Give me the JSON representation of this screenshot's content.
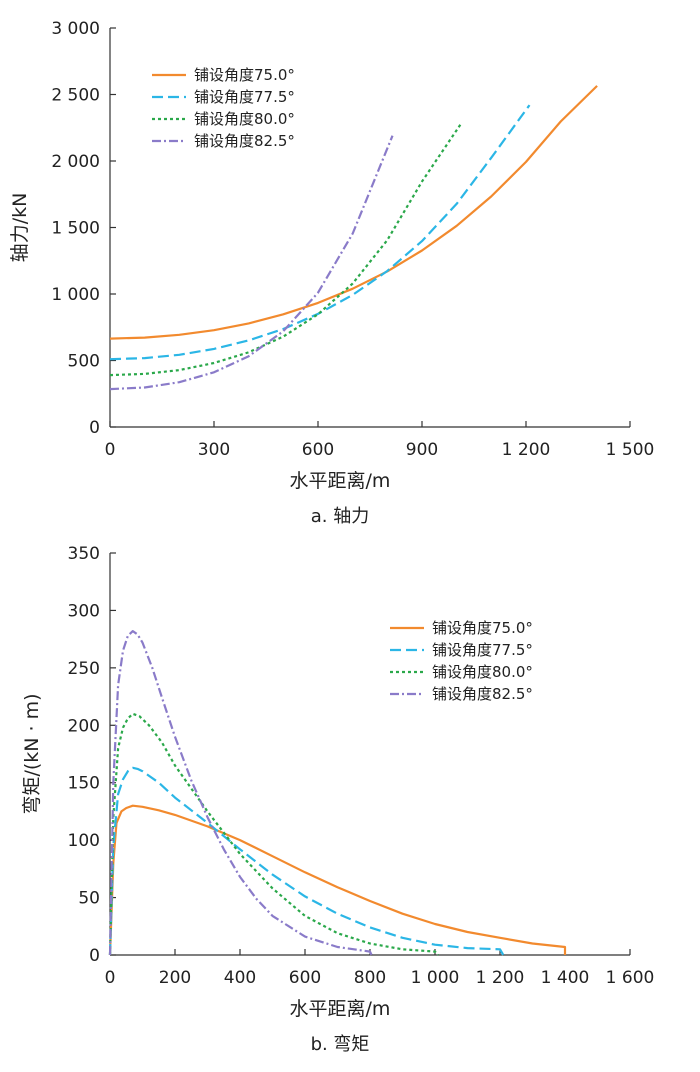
{
  "chart_data": [
    {
      "type": "line",
      "caption": "a. 轴力",
      "xlabel": "水平距离/m",
      "ylabel": "轴力/kN",
      "xlim": [
        0,
        1500
      ],
      "ylim": [
        0,
        3000
      ],
      "xticks": [
        0,
        300,
        600,
        900,
        1200,
        1500
      ],
      "xtick_labels": [
        "0",
        "300",
        "600",
        "900",
        "1 200",
        "1 500"
      ],
      "yticks": [
        0,
        500,
        1000,
        1500,
        2000,
        2500,
        3000
      ],
      "ytick_labels": [
        "0",
        "500",
        "1 000",
        "1 500",
        "2 000",
        "2 500",
        "3 000"
      ],
      "grid": false,
      "legend": "top-left",
      "series": [
        {
          "name": "铺设角度75.0°",
          "color": "#f28a2e",
          "dash": "solid",
          "x": [
            0,
            100,
            200,
            300,
            400,
            500,
            600,
            700,
            800,
            900,
            1000,
            1100,
            1200,
            1300,
            1405
          ],
          "y": [
            665,
            672,
            693,
            728,
            779,
            847,
            933,
            1040,
            1170,
            1327,
            1513,
            1734,
            1993,
            2297,
            2565
          ]
        },
        {
          "name": "铺设角度77.5°",
          "color": "#2bb6e6",
          "dash": "dashed",
          "x": [
            0,
            100,
            200,
            300,
            400,
            500,
            600,
            700,
            800,
            900,
            1000,
            1100,
            1210
          ],
          "y": [
            510,
            518,
            543,
            587,
            651,
            737,
            850,
            993,
            1173,
            1398,
            1678,
            2025,
            2420
          ]
        },
        {
          "name": "铺设角度80.0°",
          "color": "#2aa84a",
          "dash": "dotted",
          "x": [
            0,
            100,
            200,
            300,
            400,
            500,
            600,
            700,
            800,
            900,
            1015
          ],
          "y": [
            390,
            399,
            428,
            481,
            562,
            680,
            847,
            1079,
            1405,
            1846,
            2290
          ]
        },
        {
          "name": "铺设角度82.5°",
          "color": "#8a7bc9",
          "dash": "dashdot",
          "x": [
            0,
            100,
            200,
            300,
            400,
            500,
            600,
            700,
            815
          ],
          "y": [
            285,
            297,
            337,
            411,
            532,
            720,
            1010,
            1455,
            2190
          ]
        }
      ]
    },
    {
      "type": "line",
      "caption": "b. 弯矩",
      "xlabel": "水平距离/m",
      "ylabel": "弯矩/(kN · m)",
      "xlim": [
        0,
        1600
      ],
      "ylim": [
        0,
        350
      ],
      "xticks": [
        0,
        200,
        400,
        600,
        800,
        1000,
        1200,
        1400,
        1600
      ],
      "xtick_labels": [
        "0",
        "200",
        "400",
        "600",
        "800",
        "1 000",
        "1 200",
        "1 400",
        "1 600"
      ],
      "yticks": [
        0,
        50,
        100,
        150,
        200,
        250,
        300,
        350
      ],
      "ytick_labels": [
        "0",
        "50",
        "100",
        "150",
        "200",
        "250",
        "300",
        "350"
      ],
      "grid": false,
      "legend": "upper-right",
      "series": [
        {
          "name": "铺设角度75.0°",
          "color": "#f28a2e",
          "dash": "solid",
          "x": [
            0,
            10,
            20,
            35,
            50,
            70,
            100,
            150,
            200,
            300,
            400,
            500,
            600,
            700,
            800,
            900,
            1000,
            1100,
            1200,
            1300,
            1400,
            1400
          ],
          "y": [
            0,
            80,
            115,
            125,
            128,
            130,
            129,
            126,
            122,
            112,
            100,
            86,
            72,
            59,
            47,
            36,
            27,
            20,
            15,
            10,
            7,
            0
          ]
        },
        {
          "name": "铺设角度77.5°",
          "color": "#2bb6e6",
          "dash": "dashed",
          "x": [
            0,
            10,
            25,
            40,
            55,
            70,
            85,
            100,
            150,
            200,
            300,
            400,
            500,
            600,
            700,
            800,
            900,
            1000,
            1100,
            1200,
            1210
          ],
          "y": [
            0,
            95,
            140,
            153,
            160,
            163,
            162,
            160,
            150,
            137,
            115,
            92,
            70,
            51,
            36,
            24,
            15,
            9,
            6,
            5,
            0
          ]
        },
        {
          "name": "铺设角度80.0°",
          "color": "#2aa84a",
          "dash": "dotted",
          "x": [
            0,
            10,
            25,
            40,
            55,
            70,
            90,
            120,
            160,
            200,
            300,
            400,
            500,
            600,
            700,
            800,
            900,
            1000,
            1010
          ],
          "y": [
            0,
            120,
            180,
            198,
            206,
            210,
            208,
            200,
            185,
            165,
            125,
            88,
            58,
            34,
            19,
            10,
            5,
            3,
            0
          ]
        },
        {
          "name": "铺设角度82.5°",
          "color": "#8a7bc9",
          "dash": "dashdot",
          "x": [
            0,
            10,
            25,
            40,
            55,
            70,
            85,
            100,
            130,
            160,
            200,
            250,
            300,
            350,
            400,
            450,
            500,
            600,
            700,
            800,
            805
          ],
          "y": [
            0,
            150,
            235,
            265,
            278,
            282,
            279,
            272,
            250,
            224,
            190,
            152,
            120,
            92,
            68,
            49,
            34,
            16,
            7,
            3,
            0
          ]
        }
      ]
    }
  ]
}
